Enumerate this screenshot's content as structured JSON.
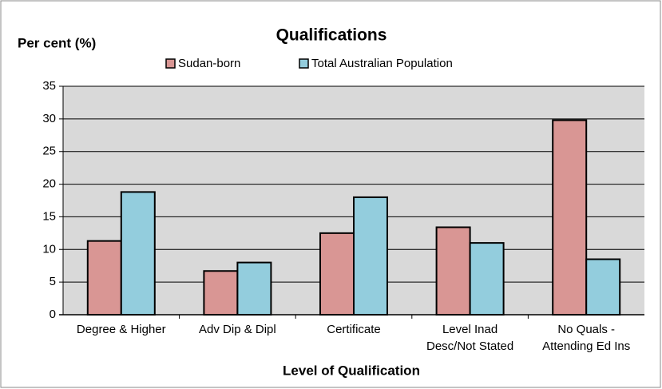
{
  "chart_data": {
    "type": "bar",
    "title": "Qualifications",
    "ylabel": "Per cent (%)",
    "xlabel": "Level of Qualification",
    "categories": [
      "Degree & Higher",
      "Adv Dip & Dipl",
      "Certificate",
      "Level Inad\nDesc/Not Stated",
      "No Quals -\nAttending Ed Ins"
    ],
    "series": [
      {
        "name": "Sudan-born",
        "color": "#d99694",
        "values": [
          11.3,
          6.7,
          12.5,
          13.4,
          29.8
        ]
      },
      {
        "name": "Total Australian Population",
        "color": "#93cddd",
        "values": [
          18.8,
          8.0,
          18.0,
          11.0,
          8.5
        ]
      }
    ],
    "ylim": [
      0,
      35
    ],
    "yticks": [
      0,
      5,
      10,
      15,
      20,
      25,
      30,
      35
    ],
    "grid": true,
    "legend": "top"
  }
}
